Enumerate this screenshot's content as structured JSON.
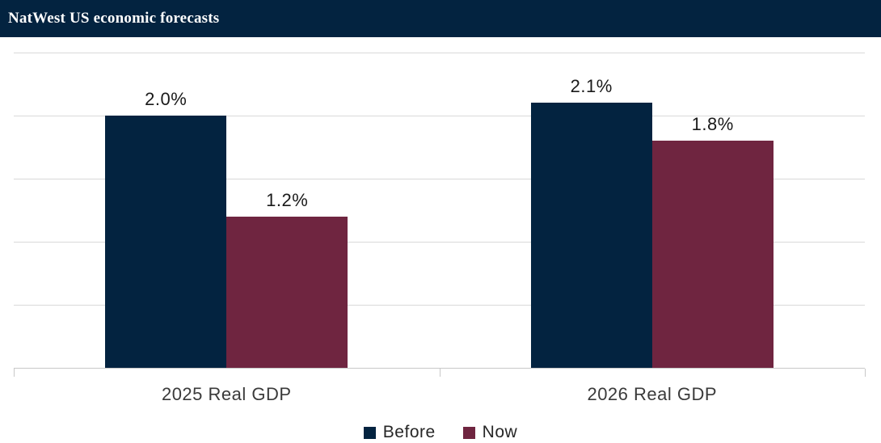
{
  "header": {
    "title": "NatWest US economic forecasts",
    "bg_color": "#032340",
    "text_color": "#FFFFFF"
  },
  "chart_data": {
    "type": "bar",
    "title": "NatWest US economic forecasts",
    "categories": [
      "2025 Real GDP",
      "2026 Real GDP"
    ],
    "series": [
      {
        "name": "Before",
        "color": "#032340",
        "values": [
          2.0,
          2.1
        ],
        "labels": [
          "2.0%",
          "2.1%"
        ]
      },
      {
        "name": "Now",
        "color": "#6F2540",
        "values": [
          1.2,
          1.8
        ],
        "labels": [
          "1.2%",
          "1.8%"
        ]
      }
    ],
    "value_suffix": "%",
    "ylim": [
      0,
      2.5
    ],
    "gridline_step": 0.5,
    "grid": true,
    "y_axis_labels_visible": false,
    "legend_position": "bottom",
    "gridline_color": "#D9D9D9",
    "axis_color": "#C8C8C8"
  }
}
